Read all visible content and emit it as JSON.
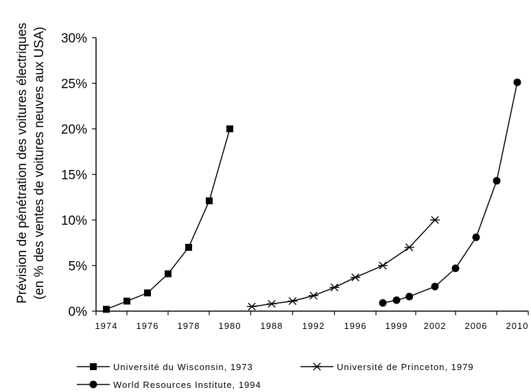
{
  "chart_data": {
    "type": "line",
    "ylabel": [
      "Prévision de pénétration des voitures électriques",
      "(en % des ventes de voitures neuves aux USA)"
    ],
    "ylim": [
      0,
      30
    ],
    "yticks": [
      "0%",
      "5%",
      "10%",
      "15%",
      "20%",
      "25%",
      "30%"
    ],
    "categories": [
      "1974",
      "1976",
      "1978",
      "1980",
      "1988",
      "1992",
      "1996",
      "1999",
      "2002",
      "2006",
      "2010"
    ],
    "grid": false,
    "legend_position": "bottom",
    "series": [
      {
        "name": "Université du Wisconsin, 1973",
        "marker": "square",
        "x": [
          1974,
          1975,
          1976,
          1977,
          1978,
          1979,
          1980
        ],
        "y": [
          0.2,
          1.1,
          2.0,
          4.1,
          7.0,
          12.1,
          20.0
        ]
      },
      {
        "name": "Université de Princeton, 1979",
        "marker": "asterisk",
        "x": [
          1986,
          1988,
          1990,
          1992,
          1994,
          1996,
          1998,
          2000,
          2002
        ],
        "y": [
          0.5,
          0.8,
          1.1,
          1.7,
          2.6,
          3.7,
          5.0,
          7.0,
          10.0
        ]
      },
      {
        "name": "World Resources Institute, 1994",
        "marker": "circle",
        "x": [
          1998,
          1999,
          2000,
          2002,
          2004,
          2006,
          2008,
          2010
        ],
        "y": [
          0.9,
          1.2,
          1.6,
          2.7,
          4.7,
          8.1,
          14.3,
          25.1
        ]
      }
    ]
  }
}
